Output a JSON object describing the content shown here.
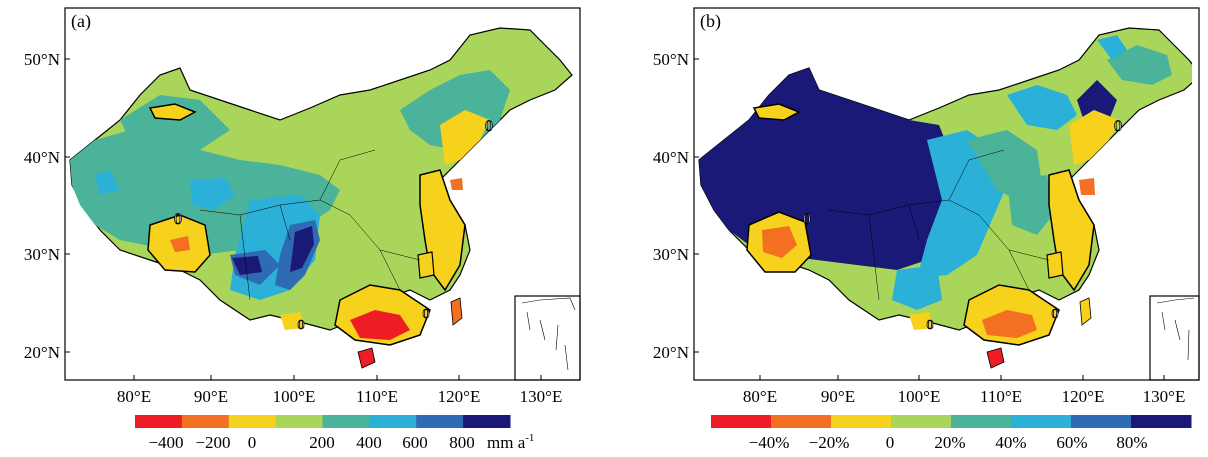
{
  "panels": [
    {
      "label": "(a)",
      "lat_ticks": [
        "50°N",
        "40°N",
        "30°N",
        "20°N"
      ],
      "lon_ticks": [
        "80°E",
        "90°E",
        "100°E",
        "110°E",
        "120°E",
        "130°E"
      ],
      "contour_label": "0",
      "legend": {
        "colors": [
          "#ee1c24",
          "#f36f21",
          "#f7d21d",
          "#a9d65a",
          "#4bb39a",
          "#2bb1d8",
          "#2f6ab4",
          "#1a1978"
        ],
        "labels": [
          "−400",
          "−200",
          "0",
          "200",
          "400",
          "600",
          "800"
        ],
        "unit": "mm a",
        "unit_sup": "-1"
      }
    },
    {
      "label": "(b)",
      "lat_ticks": [
        "50°N",
        "40°N",
        "30°N",
        "20°N"
      ],
      "lon_ticks": [
        "80°E",
        "90°E",
        "100°E",
        "110°E",
        "120°E",
        "130°E"
      ],
      "contour_label": "0",
      "legend": {
        "colors": [
          "#ee1c24",
          "#f36f21",
          "#f7d21d",
          "#a9d65a",
          "#4bb39a",
          "#2bb1d8",
          "#2f6ab4",
          "#1a1978"
        ],
        "labels": [
          "−40%",
          "−20%",
          "0",
          "20%",
          "40%",
          "60%",
          "80%"
        ],
        "unit": "",
        "unit_sup": ""
      }
    }
  ]
}
